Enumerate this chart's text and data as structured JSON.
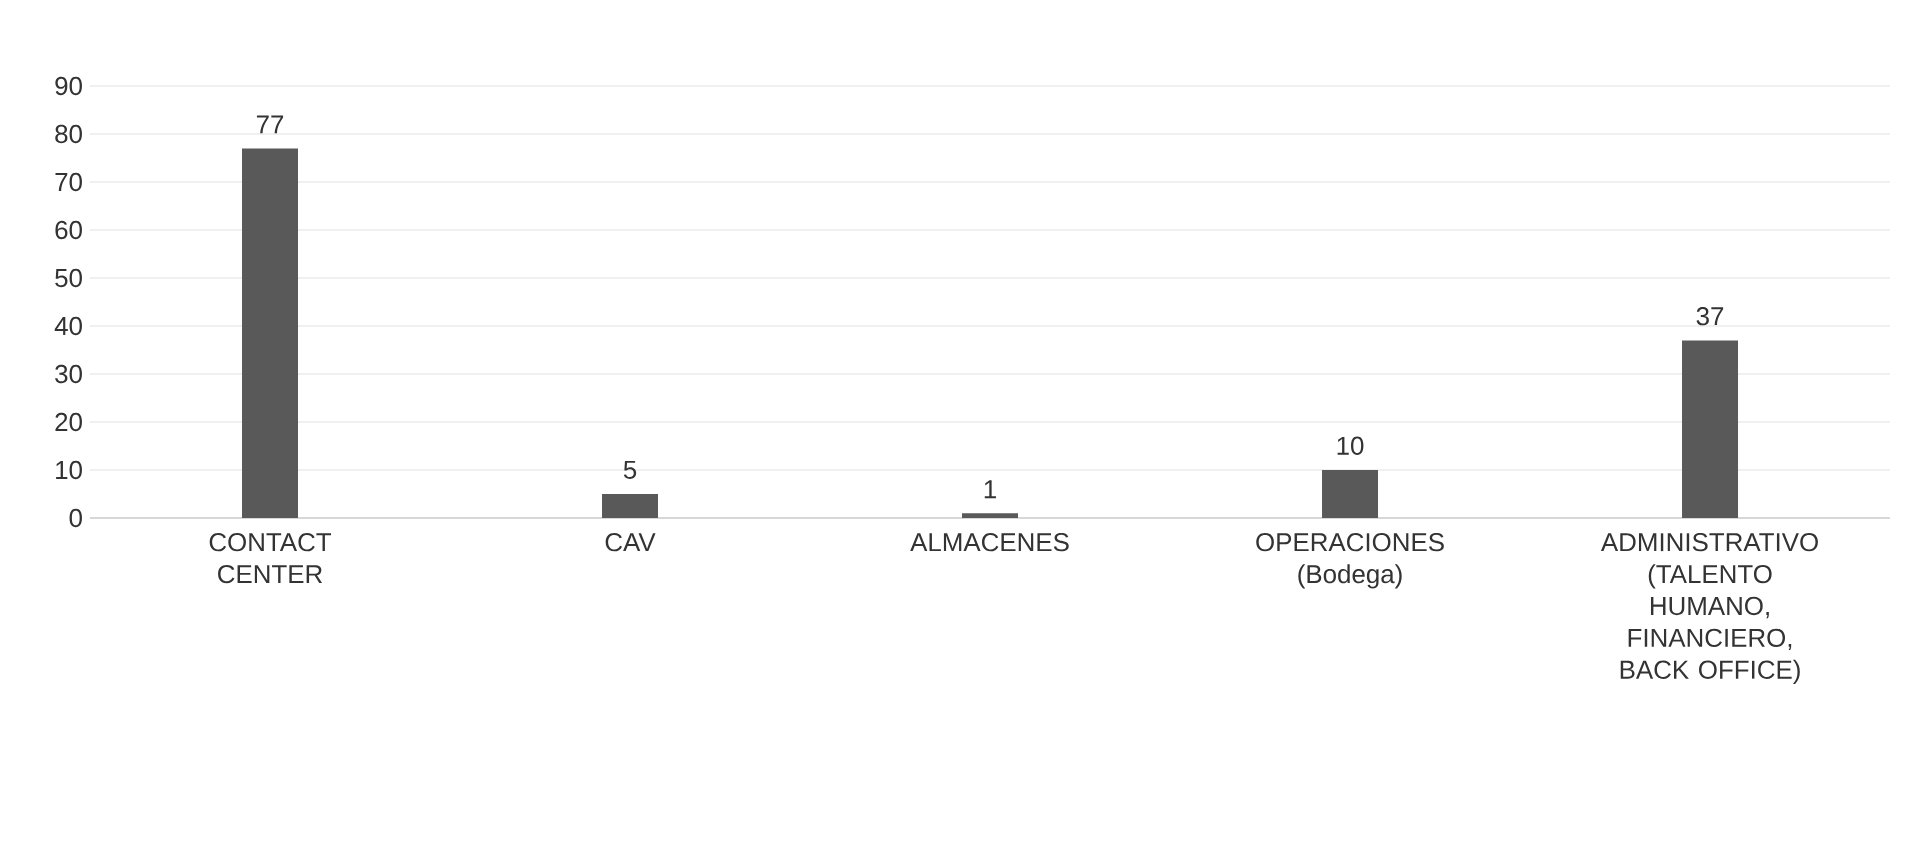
{
  "chart_data": {
    "type": "bar",
    "categories": [
      "CONTACT CENTER",
      "CAV",
      "ALMACENES",
      "OPERACIONES (Bodega)",
      "ADMINISTRATIVO (TALENTO HUMANO, FINANCIERO, BACK OFFICE)"
    ],
    "values": [
      77,
      5,
      1,
      10,
      37
    ],
    "color": "#595959",
    "ylim": [
      0,
      90
    ],
    "yticks": [
      0,
      10,
      20,
      30,
      40,
      50,
      60,
      70,
      80,
      90
    ],
    "grid": "y",
    "data_labels": true
  }
}
